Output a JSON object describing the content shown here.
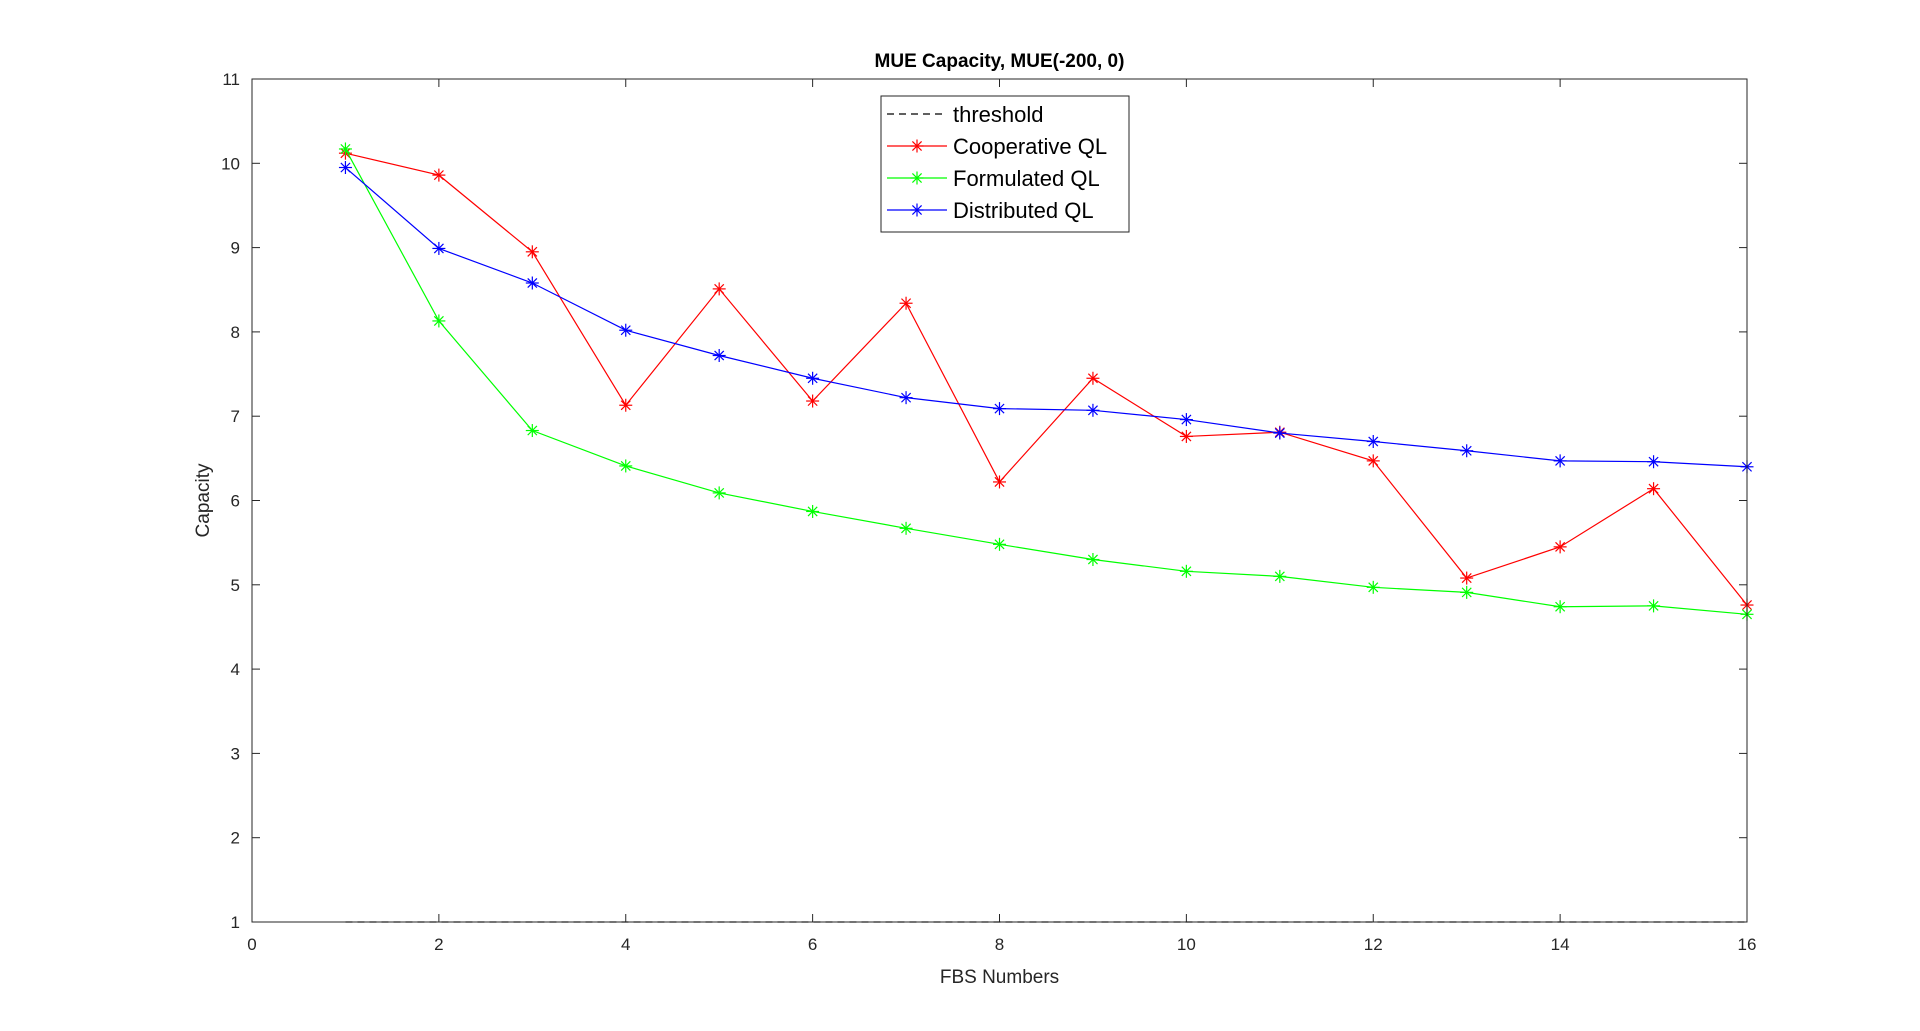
{
  "chart_data": {
    "type": "line",
    "title": "MUE Capacity, MUE(-200, 0)",
    "xlabel": "FBS Numbers",
    "ylabel": "Capacity",
    "xlim": [
      0,
      16
    ],
    "ylim": [
      1,
      11
    ],
    "xticks": [
      0,
      2,
      4,
      6,
      8,
      10,
      12,
      14,
      16
    ],
    "yticks": [
      1,
      2,
      3,
      4,
      5,
      6,
      7,
      8,
      9,
      10,
      11
    ],
    "grid": false,
    "legend_position": "top-center",
    "x": [
      1,
      2,
      3,
      4,
      5,
      6,
      7,
      8,
      9,
      10,
      11,
      12,
      13,
      14,
      15,
      16
    ],
    "series": [
      {
        "name": "threshold",
        "color": "#000000",
        "style": "dashed",
        "marker": "none",
        "values": [
          1,
          1,
          1,
          1,
          1,
          1,
          1,
          1,
          1,
          1,
          1,
          1,
          1,
          1,
          1,
          1
        ]
      },
      {
        "name": "Cooperative QL",
        "color": "#ff0000",
        "style": "solid",
        "marker": "asterisk",
        "values": [
          10.12,
          9.86,
          8.95,
          7.13,
          8.51,
          7.18,
          8.34,
          6.22,
          7.45,
          6.76,
          6.81,
          6.47,
          5.08,
          5.45,
          6.14,
          4.76
        ]
      },
      {
        "name": "Formulated QL",
        "color": "#00ff00",
        "style": "solid",
        "marker": "asterisk",
        "values": [
          10.17,
          8.13,
          6.83,
          6.41,
          6.09,
          5.87,
          5.67,
          5.48,
          5.3,
          5.16,
          5.1,
          4.97,
          4.91,
          4.74,
          4.75,
          4.65
        ]
      },
      {
        "name": "Distributed QL",
        "color": "#0000ff",
        "style": "solid",
        "marker": "asterisk",
        "values": [
          9.95,
          8.99,
          8.58,
          8.02,
          7.72,
          7.45,
          7.22,
          7.09,
          7.07,
          6.96,
          6.8,
          6.7,
          6.59,
          6.47,
          6.46,
          6.4
        ]
      }
    ]
  }
}
